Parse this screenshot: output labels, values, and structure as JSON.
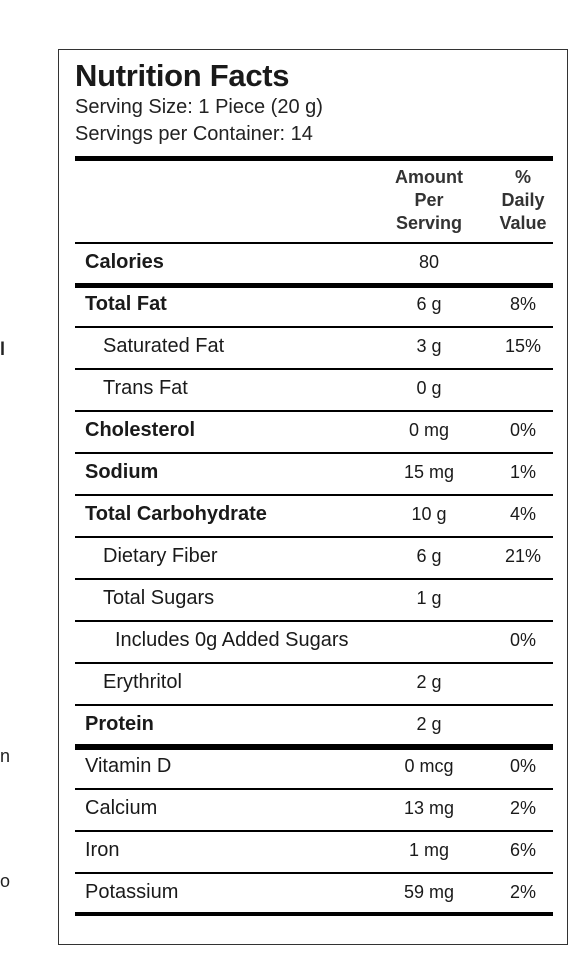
{
  "edge_fragments": [
    "l",
    "n",
    "o"
  ],
  "label": {
    "title": "Nutrition Facts",
    "serving_size": "Serving Size: 1 Piece (20 g)",
    "servings_per_container": "Servings per Container: 14",
    "header_amount": [
      "Amount",
      "Per",
      "Serving"
    ],
    "header_daily_value": [
      "%",
      "Daily",
      "Value"
    ],
    "rows": [
      {
        "name": "Calories",
        "amount": "80",
        "dv": "",
        "bold": true,
        "indent": 0
      },
      {
        "name": "Total Fat",
        "amount": "6 g",
        "dv": "8%",
        "bold": true,
        "indent": 0
      },
      {
        "name": "Saturated Fat",
        "amount": "3 g",
        "dv": "15%",
        "bold": false,
        "indent": 1
      },
      {
        "name": "Trans Fat",
        "amount": "0 g",
        "dv": "",
        "bold": false,
        "indent": 1
      },
      {
        "name": "Cholesterol",
        "amount": "0 mg",
        "dv": "0%",
        "bold": true,
        "indent": 0
      },
      {
        "name": "Sodium",
        "amount": "15 mg",
        "dv": "1%",
        "bold": true,
        "indent": 0
      },
      {
        "name": "Total Carbohydrate",
        "amount": "10 g",
        "dv": "4%",
        "bold": true,
        "indent": 0
      },
      {
        "name": "Dietary Fiber",
        "amount": "6 g",
        "dv": "21%",
        "bold": false,
        "indent": 1
      },
      {
        "name": "Total Sugars",
        "amount": "1 g",
        "dv": "",
        "bold": false,
        "indent": 1
      },
      {
        "name": "Includes 0g Added Sugars",
        "amount": "",
        "dv": "0%",
        "bold": false,
        "indent": 2
      },
      {
        "name": "Erythritol",
        "amount": "2 g",
        "dv": "",
        "bold": false,
        "indent": 1
      },
      {
        "name": "Protein",
        "amount": "2 g",
        "dv": "",
        "bold": true,
        "indent": 0
      },
      {
        "name": "Vitamin D",
        "amount": "0 mcg",
        "dv": "0%",
        "bold": false,
        "indent": 0
      },
      {
        "name": "Calcium",
        "amount": "13 mg",
        "dv": "2%",
        "bold": false,
        "indent": 0
      },
      {
        "name": "Iron",
        "amount": "1 mg",
        "dv": "6%",
        "bold": false,
        "indent": 0
      },
      {
        "name": "Potassium",
        "amount": "59 mg",
        "dv": "2%",
        "bold": false,
        "indent": 0
      }
    ]
  }
}
